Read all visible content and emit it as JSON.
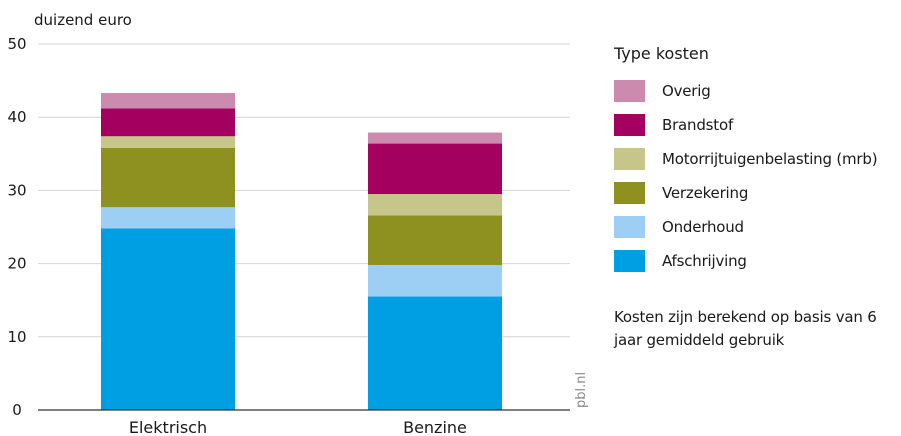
{
  "chart_data": {
    "type": "bar",
    "stacked": true,
    "ylabel": "duizend euro",
    "ylim": [
      0,
      50
    ],
    "yticks": [
      0,
      10,
      20,
      30,
      40,
      50
    ],
    "grid": true,
    "categories": [
      "Elektrisch",
      "Benzine"
    ],
    "series": [
      {
        "name": "Afschrijving",
        "color": "#009fe3",
        "values": [
          24.8,
          15.5
        ]
      },
      {
        "name": "Onderhoud",
        "color": "#9dcff5",
        "values": [
          2.9,
          4.3
        ]
      },
      {
        "name": "Verzekering",
        "color": "#8e9120",
        "values": [
          8.1,
          6.8
        ]
      },
      {
        "name": "Motorrijtuigenbelasting (mrb)",
        "color": "#c7c68a",
        "values": [
          1.6,
          2.9
        ]
      },
      {
        "name": "Brandstof",
        "color": "#a3005f",
        "values": [
          3.8,
          6.9
        ]
      },
      {
        "name": "Overig",
        "color": "#cc8aae",
        "values": [
          2.1,
          1.5
        ]
      }
    ],
    "legend": {
      "title": "Type kosten",
      "placement": "right",
      "order": [
        "Overig",
        "Brandstof",
        "Motorrijtuigenbelasting (mrb)",
        "Verzekering",
        "Onderhoud",
        "Afschrijving"
      ]
    },
    "note": "Kosten zijn berekend op basis van 6 jaar gemiddeld gebruik",
    "source": "pbl.nl"
  }
}
